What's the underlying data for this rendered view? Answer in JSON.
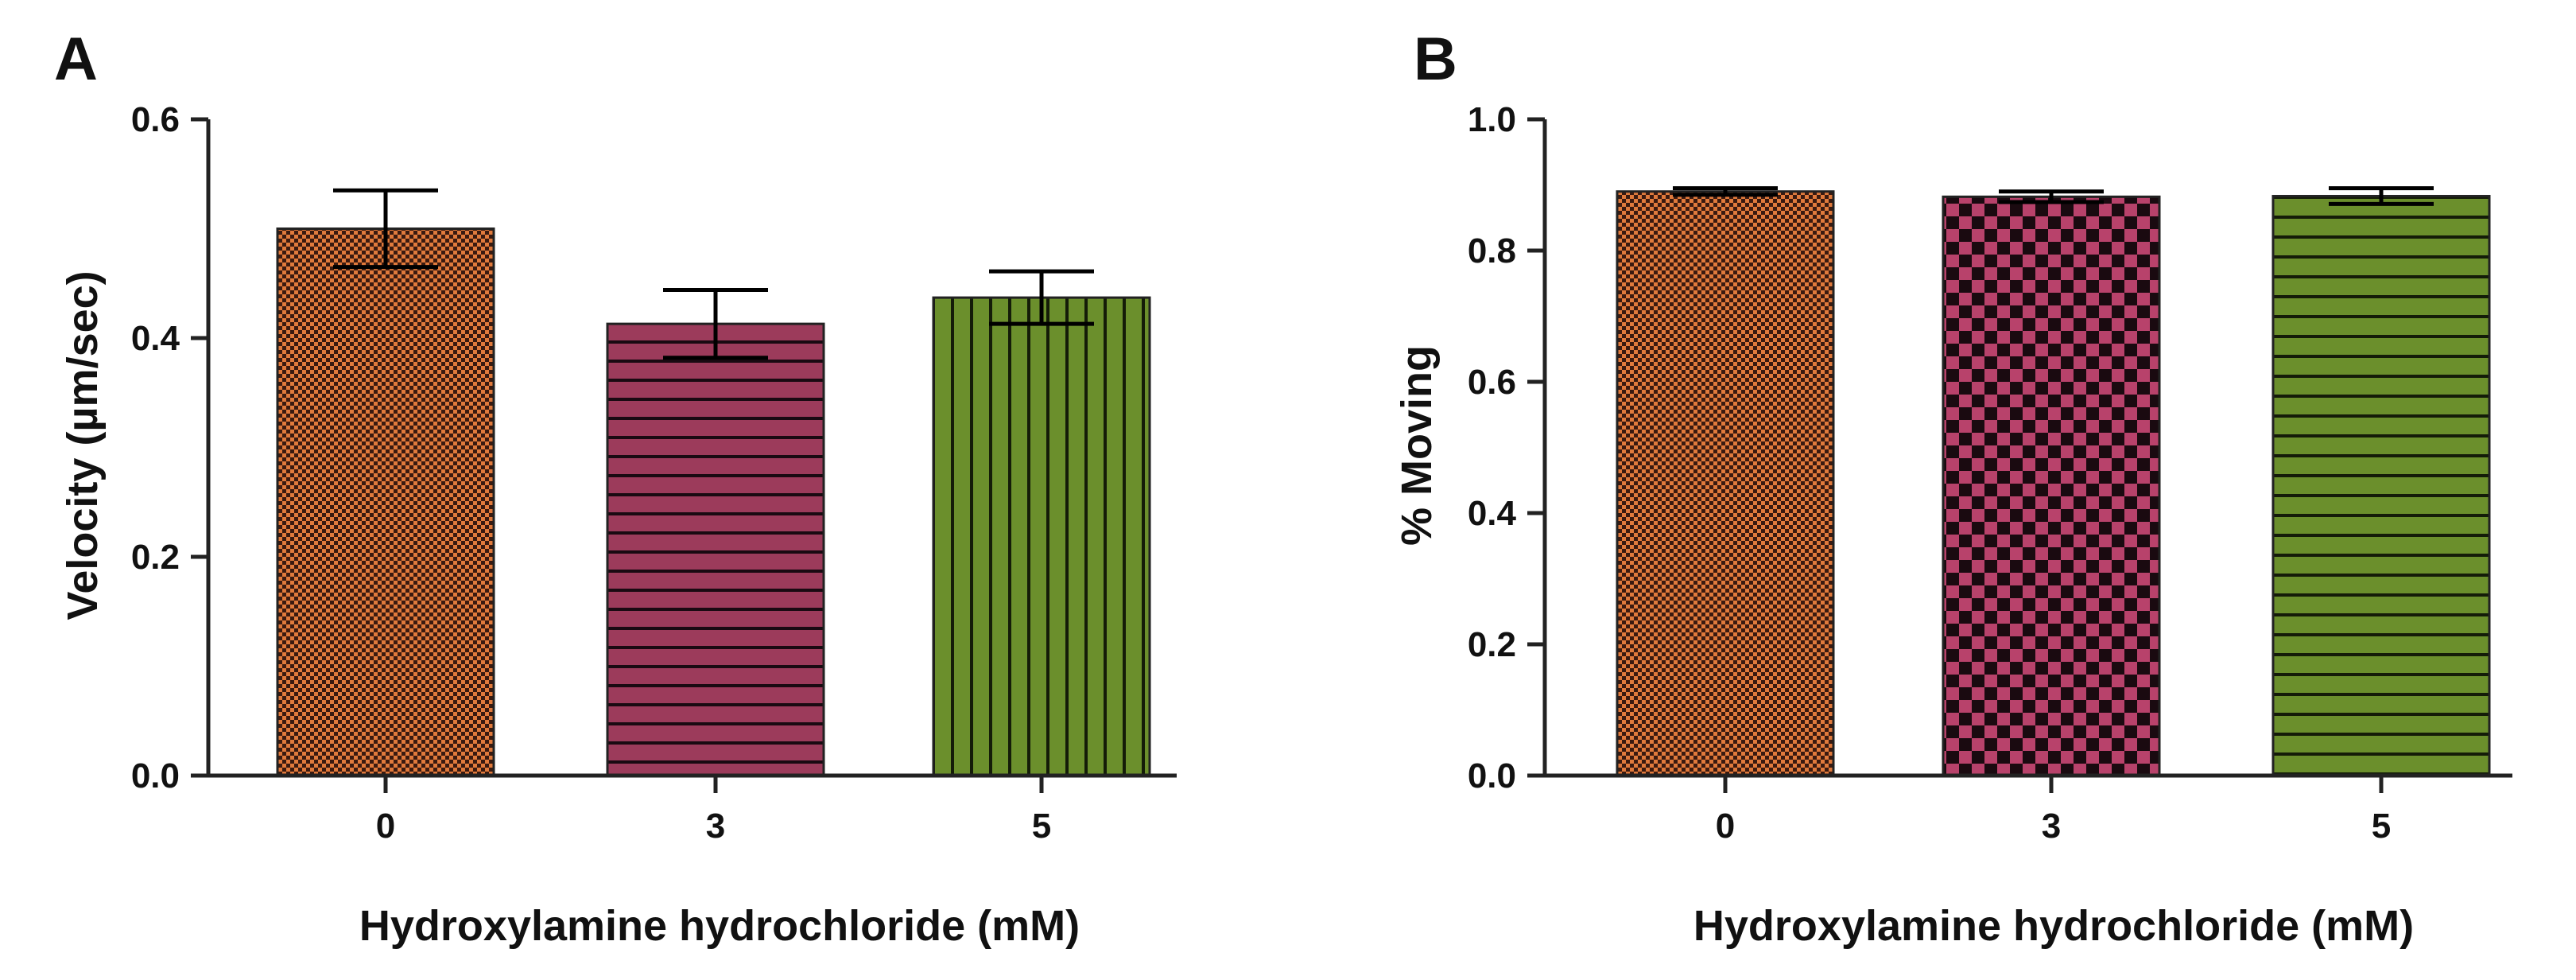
{
  "chart_data": [
    {
      "panel": "A",
      "type": "bar",
      "title": "",
      "xlabel": "Hydroxylamine hydrochloride (mM)",
      "ylabel": "Velocity (µm/sec)",
      "categories": [
        "0",
        "3",
        "5"
      ],
      "values": [
        0.5,
        0.413,
        0.437
      ],
      "errors": [
        0.035,
        0.031,
        0.024
      ],
      "ylim": [
        0,
        0.6
      ],
      "yticks": [
        0.0,
        0.2,
        0.4,
        0.6
      ],
      "ytick_labels": [
        "0.0",
        "0.2",
        "0.4",
        "0.6"
      ],
      "colors": [
        "#e07a3c",
        "#9c3b5b",
        "#6b8f2c"
      ],
      "patterns": [
        "fine-check",
        "horizontal-lines",
        "vertical-lines"
      ]
    },
    {
      "panel": "B",
      "type": "bar",
      "title": "",
      "xlabel": "Hydroxylamine hydrochloride (mM)",
      "ylabel": "% Moving",
      "categories": [
        "0",
        "3",
        "5"
      ],
      "values": [
        0.89,
        0.882,
        0.883
      ],
      "errors": [
        0.005,
        0.008,
        0.012
      ],
      "ylim": [
        0,
        1.0
      ],
      "yticks": [
        0.0,
        0.2,
        0.4,
        0.6,
        0.8,
        1.0
      ],
      "ytick_labels": [
        "0.0",
        "0.2",
        "0.4",
        "0.6",
        "0.8",
        "1.0"
      ],
      "colors": [
        "#e07a3c",
        "#b8426b",
        "#6b8f2c"
      ],
      "patterns": [
        "fine-check",
        "checker",
        "horizontal-lines"
      ]
    }
  ]
}
